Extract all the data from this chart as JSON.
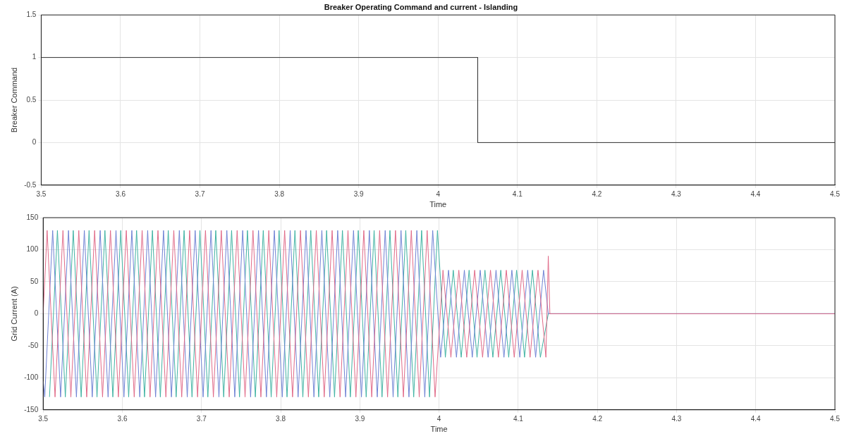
{
  "chart_data": [
    {
      "type": "line",
      "title": "Breaker Operating Command and current - Islanding",
      "xlabel": "Time",
      "ylabel": "Breaker Command",
      "series": [
        {
          "color": "#333333",
          "x": [
            3.5,
            4.05,
            4.05,
            4.5
          ],
          "values": [
            1,
            1,
            0,
            0
          ]
        }
      ],
      "xlim": [
        3.5,
        4.5
      ],
      "xticks": [
        3.5,
        3.6,
        3.7,
        3.8,
        3.9,
        4,
        4.1,
        4.2,
        4.3,
        4.4,
        4.5
      ],
      "ylim": [
        -0.5,
        1.5
      ],
      "yticks": [
        -0.5,
        0,
        0.5,
        1,
        1.5
      ],
      "grid": true,
      "legend": false,
      "marker": "none"
    },
    {
      "type": "line",
      "xlabel": "Time",
      "ylabel": "Grid Current (A)",
      "series": [
        {
          "color": "#e06a88",
          "x": [
            3.5,
            3.505,
            3.515,
            3.525,
            3.535,
            3.545,
            3.555,
            3.565,
            3.575,
            3.585,
            3.595,
            3.605,
            3.615,
            3.625,
            3.635,
            3.645,
            3.655,
            3.665,
            3.675,
            3.685,
            3.695,
            3.705,
            3.715,
            3.725,
            3.735,
            3.745,
            3.755,
            3.765,
            3.775,
            3.785,
            3.795,
            3.805,
            3.815,
            3.825,
            3.835,
            3.845,
            3.855,
            3.865,
            3.875,
            3.885,
            3.895,
            3.905,
            3.915,
            3.925,
            3.935,
            3.945,
            3.955,
            3.965,
            3.975,
            3.985,
            3.995,
            4.005,
            4.015,
            4.025,
            4.035,
            4.045,
            4.055,
            4.065,
            4.075,
            4.085,
            4.095,
            4.105,
            4.115,
            4.125,
            4.135,
            4.138,
            4.14,
            4.5
          ],
          "values": [
            0,
            130,
            -130,
            130,
            -130,
            130,
            -130,
            130,
            -130,
            130,
            -130,
            130,
            -130,
            130,
            -130,
            130,
            -130,
            130,
            -130,
            130,
            -130,
            130,
            -130,
            130,
            -130,
            130,
            -130,
            130,
            -130,
            130,
            -130,
            130,
            -130,
            130,
            -130,
            130,
            -130,
            130,
            -130,
            130,
            -130,
            130,
            -130,
            130,
            -130,
            130,
            -130,
            130,
            -130,
            130,
            -130,
            68,
            -68,
            68,
            -68,
            68,
            -68,
            68,
            -68,
            68,
            -68,
            68,
            -68,
            68,
            -68,
            90,
            0,
            0
          ]
        },
        {
          "color": "#6f82d4",
          "x": [
            3.5,
            3.502,
            3.512,
            3.522,
            3.532,
            3.542,
            3.552,
            3.562,
            3.572,
            3.582,
            3.592,
            3.602,
            3.612,
            3.622,
            3.632,
            3.642,
            3.652,
            3.662,
            3.672,
            3.682,
            3.692,
            3.702,
            3.712,
            3.722,
            3.732,
            3.742,
            3.752,
            3.762,
            3.772,
            3.782,
            3.792,
            3.802,
            3.812,
            3.822,
            3.832,
            3.842,
            3.852,
            3.862,
            3.872,
            3.882,
            3.892,
            3.902,
            3.912,
            3.922,
            3.932,
            3.942,
            3.952,
            3.962,
            3.972,
            3.982,
            3.992,
            4.002,
            4.012,
            4.022,
            4.032,
            4.042,
            4.052,
            4.062,
            4.072,
            4.082,
            4.092,
            4.102,
            4.112,
            4.122,
            4.132,
            4.138,
            4.5
          ],
          "values": [
            -105,
            -130,
            130,
            -130,
            130,
            -130,
            130,
            -130,
            130,
            -130,
            130,
            -130,
            130,
            -130,
            130,
            -130,
            130,
            -130,
            130,
            -130,
            130,
            -130,
            130,
            -130,
            130,
            -130,
            130,
            -130,
            130,
            -130,
            130,
            -130,
            130,
            -130,
            130,
            -130,
            130,
            -130,
            130,
            -130,
            130,
            -130,
            130,
            -130,
            130,
            -130,
            130,
            -130,
            130,
            -130,
            130,
            -68,
            68,
            -68,
            68,
            -68,
            68,
            -68,
            68,
            -68,
            68,
            -68,
            68,
            -68,
            68,
            0,
            0
          ]
        },
        {
          "color": "#3fb2a2",
          "x": [
            3.508,
            3.518,
            3.528,
            3.538,
            3.548,
            3.558,
            3.568,
            3.578,
            3.588,
            3.598,
            3.608,
            3.618,
            3.628,
            3.638,
            3.648,
            3.658,
            3.668,
            3.678,
            3.688,
            3.698,
            3.708,
            3.718,
            3.728,
            3.738,
            3.748,
            3.758,
            3.768,
            3.778,
            3.788,
            3.798,
            3.808,
            3.818,
            3.828,
            3.838,
            3.848,
            3.858,
            3.868,
            3.878,
            3.888,
            3.898,
            3.908,
            3.918,
            3.928,
            3.938,
            3.948,
            3.958,
            3.968,
            3.978,
            3.988,
            3.998,
            4.008,
            4.018,
            4.028,
            4.038,
            4.048,
            4.058,
            4.068,
            4.078,
            4.088,
            4.098,
            4.108,
            4.118,
            4.128,
            4.138,
            4.5
          ],
          "values": [
            -130,
            130,
            -130,
            130,
            -130,
            130,
            -130,
            130,
            -130,
            130,
            -130,
            130,
            -130,
            130,
            -130,
            130,
            -130,
            130,
            -130,
            130,
            -130,
            130,
            -130,
            130,
            -130,
            130,
            -130,
            130,
            -130,
            130,
            -130,
            130,
            -130,
            130,
            -130,
            130,
            -130,
            130,
            -130,
            130,
            -130,
            130,
            -130,
            130,
            -130,
            130,
            -130,
            130,
            -130,
            130,
            -68,
            68,
            -68,
            68,
            -68,
            68,
            -68,
            68,
            -68,
            68,
            -68,
            68,
            -68,
            0,
            0
          ]
        }
      ],
      "xlim": [
        3.5,
        4.5
      ],
      "xticks": [
        3.5,
        3.6,
        3.7,
        3.8,
        3.9,
        4,
        4.1,
        4.2,
        4.3,
        4.4,
        4.5
      ],
      "ylim": [
        -150,
        150
      ],
      "yticks": [
        -150,
        -100,
        -50,
        0,
        50,
        100,
        150
      ],
      "grid": true,
      "legend": false,
      "marker": "none"
    }
  ]
}
